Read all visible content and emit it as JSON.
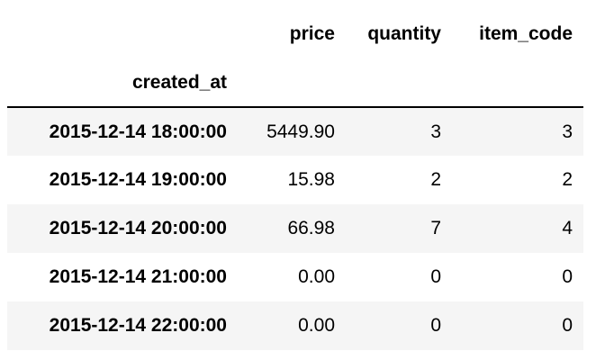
{
  "table": {
    "columns": [
      "price",
      "quantity",
      "item_code"
    ],
    "index_name": "created_at",
    "rows": [
      {
        "index": "2015-12-14 18:00:00",
        "price": "5449.90",
        "quantity": "3",
        "item_code": "3"
      },
      {
        "index": "2015-12-14 19:00:00",
        "price": "15.98",
        "quantity": "2",
        "item_code": "2"
      },
      {
        "index": "2015-12-14 20:00:00",
        "price": "66.98",
        "quantity": "7",
        "item_code": "4"
      },
      {
        "index": "2015-12-14 21:00:00",
        "price": "0.00",
        "quantity": "0",
        "item_code": "0"
      },
      {
        "index": "2015-12-14 22:00:00",
        "price": "0.00",
        "quantity": "0",
        "item_code": "0"
      }
    ]
  },
  "colors": {
    "stripe": "#f5f5f5",
    "text": "#000000",
    "header_rule": "#000000"
  }
}
